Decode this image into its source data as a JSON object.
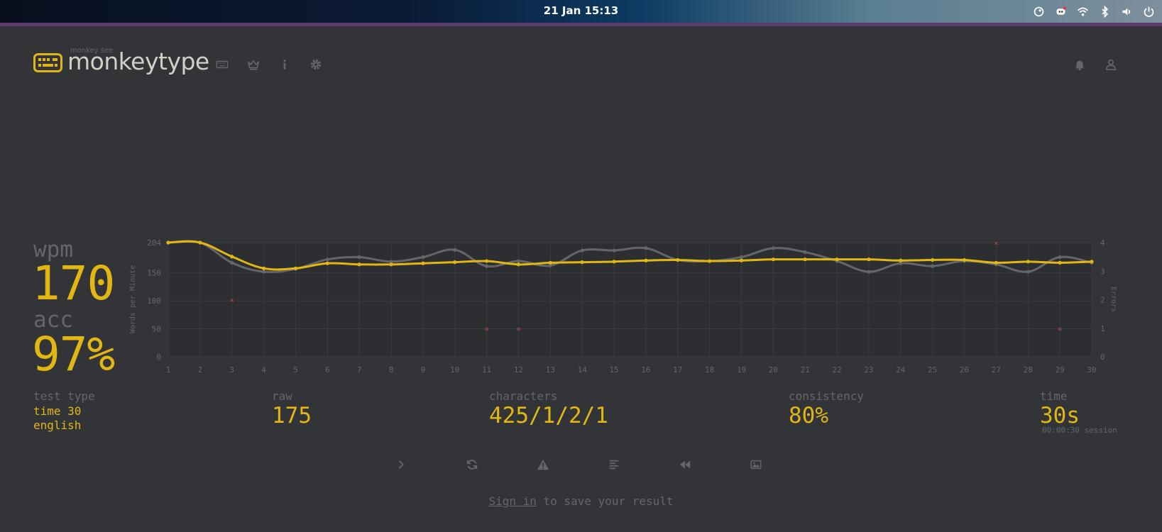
{
  "system": {
    "clock": "21 Jan  15:13",
    "tray_icons": [
      "steam-icon",
      "discord-icon",
      "wifi-icon",
      "bluetooth-icon",
      "volume-icon",
      "power-icon"
    ]
  },
  "header": {
    "logo_top": "monkey see",
    "logo_text": "monkeytype",
    "nav_icons": [
      "keyboard-icon",
      "crown-icon",
      "info-icon",
      "gear-icon"
    ],
    "right_icons": [
      "bell-icon",
      "user-icon"
    ]
  },
  "stats": {
    "wpm_label": "wpm",
    "wpm_value": "170",
    "acc_label": "acc",
    "acc_value": "97%",
    "test_type_label": "test type",
    "test_type_line1": "time 30",
    "test_type_line2": "english",
    "raw_label": "raw",
    "raw_value": "175",
    "characters_label": "characters",
    "characters_value": "425/1/2/1",
    "consistency_label": "consistency",
    "consistency_value": "80%",
    "time_label": "time",
    "time_value": "30s",
    "session_text": "00:00:30 session"
  },
  "actions": {
    "icons": [
      "next-test-icon",
      "restart-icon",
      "report-icon",
      "words-history-icon",
      "replay-icon",
      "screenshot-icon"
    ]
  },
  "signin": {
    "link": "Sign in",
    "rest": " to save your result"
  },
  "colors": {
    "background": "#323437",
    "main": "#e2b714",
    "sub": "#646669",
    "text": "#d1d0c5",
    "error": "#ca4754"
  },
  "chart_data": {
    "type": "line",
    "ylabel": "Words per Minute",
    "y2label": "Errors",
    "ylim": [
      0,
      204
    ],
    "yticks": [
      "204",
      "150",
      "100",
      "50",
      "0"
    ],
    "y2lim": [
      0,
      4
    ],
    "y2ticks": [
      "4",
      "3",
      "2",
      "1",
      "0"
    ],
    "x": [
      1,
      2,
      3,
      4,
      5,
      6,
      7,
      8,
      9,
      10,
      11,
      12,
      13,
      14,
      15,
      16,
      17,
      18,
      19,
      20,
      21,
      22,
      23,
      24,
      25,
      26,
      27,
      28,
      29,
      30
    ],
    "grid": true,
    "series": [
      {
        "key": "raw",
        "color": "#646669",
        "values": [
          204,
          204,
          168,
          152,
          157,
          174,
          178,
          170,
          178,
          191,
          162,
          171,
          163,
          190,
          190,
          194,
          173,
          171,
          178,
          194,
          187,
          171,
          152,
          167,
          162,
          171,
          165,
          152,
          178,
          168
        ]
      },
      {
        "key": "wpm",
        "color": "#e2b714",
        "values": [
          204,
          204,
          179,
          158,
          158,
          167,
          165,
          165,
          167,
          169,
          171,
          165,
          168,
          169,
          170,
          172,
          173,
          171,
          172,
          174,
          174,
          174,
          174,
          172,
          173,
          173,
          168,
          170,
          168,
          170
        ]
      },
      {
        "key": "errors",
        "color": "#ca4754",
        "type": "scatter",
        "points": [
          [
            3,
            2
          ],
          [
            11,
            1
          ],
          [
            12,
            1
          ],
          [
            27,
            4
          ],
          [
            29,
            1
          ]
        ]
      }
    ]
  }
}
